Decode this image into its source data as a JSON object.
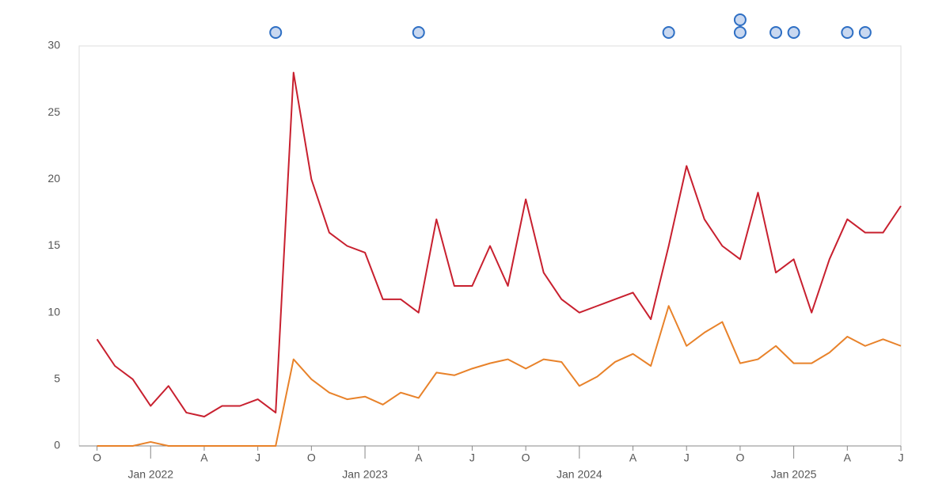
{
  "chart_data": {
    "type": "line",
    "x": [
      "2021-10",
      "2021-11",
      "2021-12",
      "2022-01",
      "2022-02",
      "2022-03",
      "2022-04",
      "2022-05",
      "2022-06",
      "2022-07",
      "2022-08",
      "2022-09",
      "2022-10",
      "2022-11",
      "2022-12",
      "2023-01",
      "2023-02",
      "2023-03",
      "2023-04",
      "2023-05",
      "2023-06",
      "2023-07",
      "2023-08",
      "2023-09",
      "2023-10",
      "2023-11",
      "2023-12",
      "2024-01",
      "2024-02",
      "2024-03",
      "2024-04",
      "2024-05",
      "2024-06",
      "2024-07",
      "2024-08",
      "2024-09",
      "2024-10",
      "2024-11",
      "2024-12",
      "2025-01",
      "2025-02",
      "2025-03",
      "2025-04",
      "2025-05",
      "2025-06",
      "2025-07"
    ],
    "series": [
      {
        "color": "#c8202f",
        "values": [
          8,
          6,
          5,
          3,
          4.5,
          2.5,
          2.2,
          3,
          3,
          3.5,
          2.5,
          28,
          20,
          16,
          15,
          14.5,
          11,
          11,
          10,
          17,
          12,
          12,
          15,
          12,
          18.5,
          13,
          11,
          10,
          10.5,
          11,
          11.5,
          9.5,
          15,
          21,
          17,
          15,
          14,
          19,
          13,
          14,
          10,
          14,
          17,
          16,
          16,
          18
        ]
      },
      {
        "color": "#e8822a",
        "values": [
          0,
          0,
          0,
          0.3,
          0,
          0,
          0,
          0,
          0,
          0,
          0,
          6.5,
          5,
          4,
          3.5,
          3.7,
          3.1,
          4,
          3.6,
          5.5,
          5.3,
          5.8,
          6.2,
          6.5,
          5.8,
          6.5,
          6.3,
          4.5,
          5.2,
          6.3,
          6.9,
          6,
          10.5,
          7.5,
          8.5,
          9.3,
          6.2,
          6.5,
          7.5,
          6.2,
          6.2,
          7,
          8.2,
          7.5,
          8,
          7.5
        ]
      }
    ],
    "events": [
      "2022-08",
      "2023-04",
      "2024-06",
      "2024-10",
      "2024-10",
      "2024-12",
      "2025-01",
      "2025-04",
      "2025-05"
    ],
    "xlim": [
      "2021-09",
      "2025-07"
    ],
    "xticks": [
      {
        "value": "2021-10",
        "label": "O"
      },
      {
        "value": "2022-01",
        "label": "Jan 2022"
      },
      {
        "value": "2022-04",
        "label": "A"
      },
      {
        "value": "2022-07",
        "label": "J"
      },
      {
        "value": "2022-10",
        "label": "O"
      },
      {
        "value": "2023-01",
        "label": "Jan 2023"
      },
      {
        "value": "2023-04",
        "label": "A"
      },
      {
        "value": "2023-07",
        "label": "J"
      },
      {
        "value": "2023-10",
        "label": "O"
      },
      {
        "value": "2024-01",
        "label": "Jan 2024"
      },
      {
        "value": "2024-04",
        "label": "A"
      },
      {
        "value": "2024-07",
        "label": "J"
      },
      {
        "value": "2024-10",
        "label": "O"
      },
      {
        "value": "2025-01",
        "label": "Jan 2025"
      },
      {
        "value": "2025-04",
        "label": "A"
      },
      {
        "value": "2025-07",
        "label": "J"
      }
    ],
    "ylim": [
      0,
      30
    ],
    "yticks": [
      0,
      5,
      10,
      15,
      20,
      25,
      30
    ],
    "grid": false
  }
}
